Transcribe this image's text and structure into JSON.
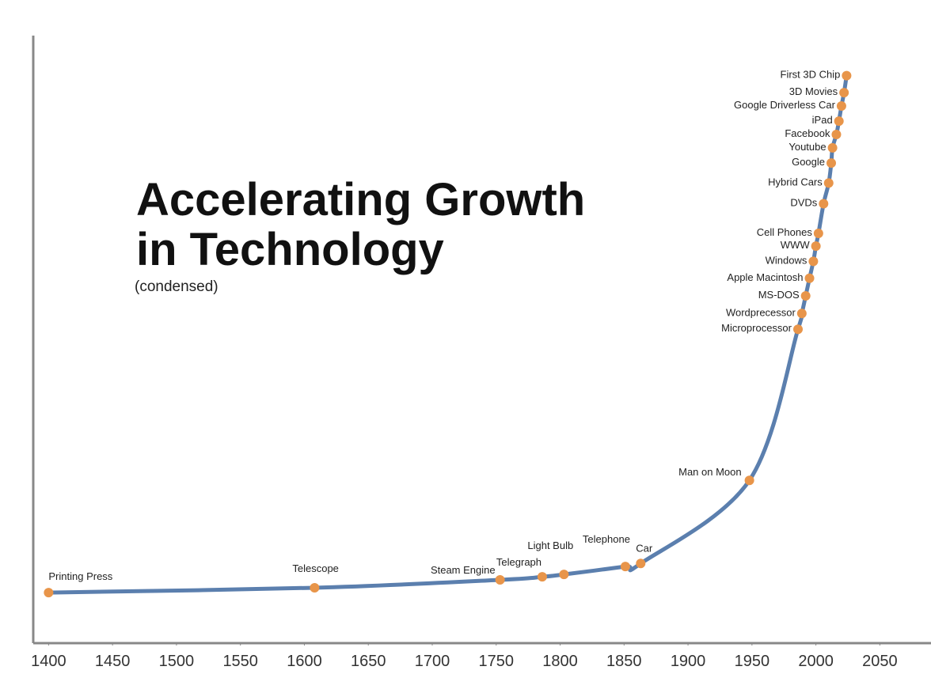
{
  "chart_data": {
    "type": "line",
    "title": [
      "Accelerating Growth",
      "in Technology"
    ],
    "subtitle": "(condensed)",
    "x": [
      1400,
      1608,
      1753,
      1786,
      1803,
      1851,
      1863,
      1948,
      1986,
      1989,
      1992,
      1995,
      1998,
      2000,
      2002,
      2006,
      2010,
      2012,
      2013,
      2016,
      2018,
      2020,
      2022,
      2024
    ],
    "series": [
      {
        "color": "#5b7fae",
        "marker_color": "#e8954a",
        "values": [
          8.2,
          9.0,
          10.3,
          10.8,
          11.2,
          12.5,
          13.0,
          26.7,
          51.6,
          54.2,
          57.1,
          60.0,
          62.8,
          65.3,
          67.4,
          72.3,
          75.7,
          79.0,
          81.5,
          83.7,
          85.9,
          88.4,
          90.6,
          93.4
        ],
        "point_labels": [
          "Printing Press",
          "Telescope",
          "Steam Engine",
          "Telegraph",
          "Light Bulb",
          "Telephone",
          "Car",
          "Man on Moon",
          "Microprocessor",
          "Wordprecessor",
          "MS-DOS",
          "Apple Macintosh",
          "Windows",
          "WWW",
          "Cell Phones",
          "DVDs",
          "Hybrid Cars",
          "Google",
          "Youtube",
          "Facebook",
          "iPad",
          "Google Driverless Car",
          "3D Movies",
          "First 3D Chip"
        ]
      }
    ],
    "xlim": [
      1388,
      2090
    ],
    "ylim": [
      0,
      100
    ],
    "xticks": [
      1400,
      1450,
      1500,
      1550,
      1600,
      1650,
      1700,
      1750,
      1800,
      1850,
      1900,
      1950,
      2000,
      2050
    ]
  }
}
